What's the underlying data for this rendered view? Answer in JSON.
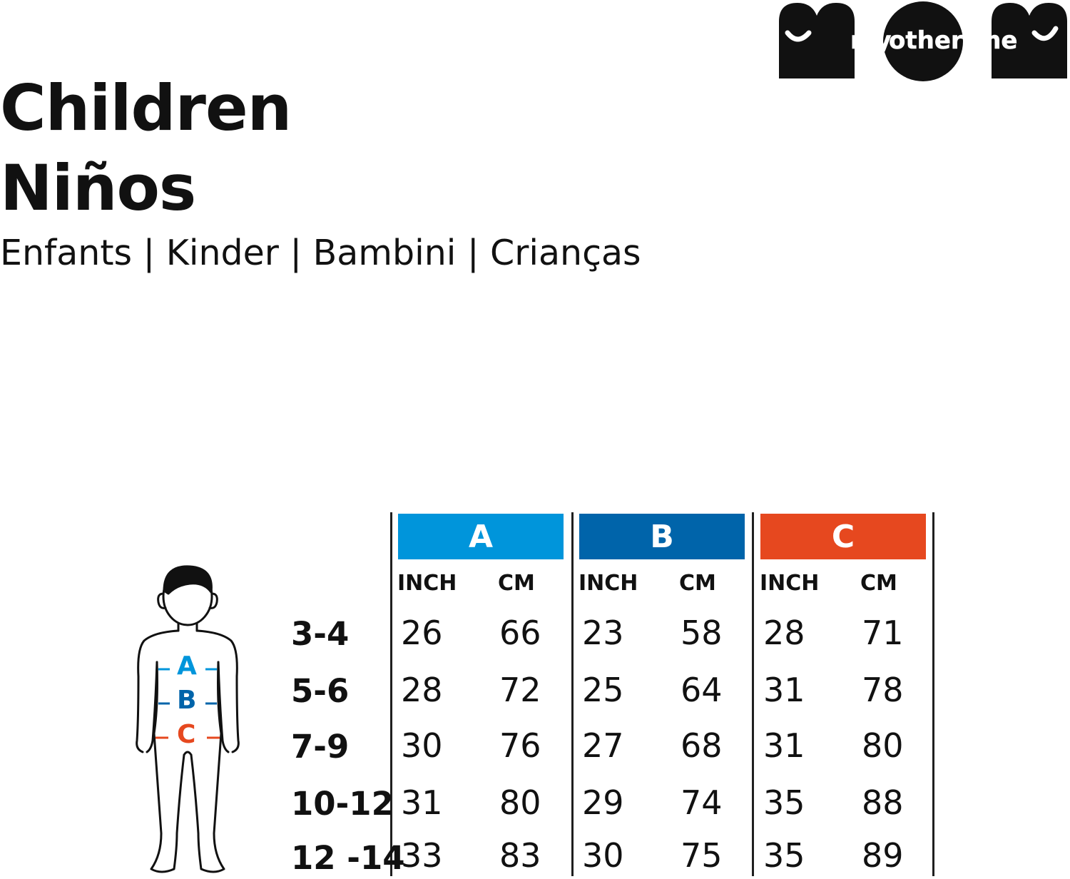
{
  "brand": {
    "logo_text": "MOM",
    "logo_words": [
      "my",
      "other",
      "me"
    ]
  },
  "heading": {
    "title_en": "Children",
    "title_es": "Niños",
    "subtitle": "Enfants | Kinder | Bambini | Crianças"
  },
  "colors": {
    "A": "#0095DB",
    "B": "#0064AA",
    "C": "#E6481F"
  },
  "size_chart": {
    "measurements": [
      {
        "key": "A",
        "label": "A",
        "units": [
          "INCH",
          "CM"
        ]
      },
      {
        "key": "B",
        "label": "B",
        "units": [
          "INCH",
          "CM"
        ]
      },
      {
        "key": "C",
        "label": "C",
        "units": [
          "INCH",
          "CM"
        ]
      }
    ],
    "rows": [
      {
        "size": "3-4",
        "values": [
          "26",
          "66",
          "23",
          "58",
          "28",
          "71"
        ]
      },
      {
        "size": "5-6",
        "values": [
          "28",
          "72",
          "25",
          "64",
          "31",
          "78"
        ]
      },
      {
        "size": "7-9",
        "values": [
          "30",
          "76",
          "27",
          "68",
          "31",
          "80"
        ]
      },
      {
        "size": "10-12",
        "values": [
          "31",
          "80",
          "29",
          "74",
          "35",
          "88"
        ]
      },
      {
        "size": "12 -14",
        "values": [
          "33",
          "83",
          "30",
          "75",
          "35",
          "89"
        ]
      }
    ]
  },
  "figure": {
    "labels": [
      "A",
      "B",
      "C"
    ]
  }
}
